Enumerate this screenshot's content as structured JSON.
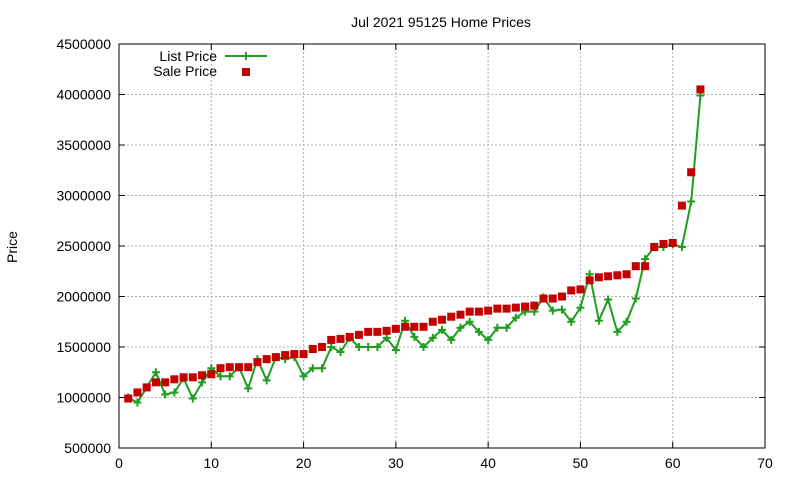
{
  "chart_data": {
    "type": "line",
    "title": "Jul 2021 95125 Home Prices",
    "xlabel": "",
    "ylabel": "Price",
    "xlim": [
      0,
      70
    ],
    "ylim": [
      500000,
      4500000
    ],
    "xticks": [
      0,
      10,
      20,
      30,
      40,
      50,
      60,
      70
    ],
    "yticks": [
      500000,
      1000000,
      1500000,
      2000000,
      2500000,
      3000000,
      3500000,
      4000000,
      4500000
    ],
    "grid": true,
    "legend_position": "top-left",
    "x": [
      1,
      2,
      3,
      4,
      5,
      6,
      7,
      8,
      9,
      10,
      11,
      12,
      13,
      14,
      15,
      16,
      17,
      18,
      19,
      20,
      21,
      22,
      23,
      24,
      25,
      26,
      27,
      28,
      29,
      30,
      31,
      32,
      33,
      34,
      35,
      36,
      37,
      38,
      39,
      40,
      41,
      42,
      43,
      44,
      45,
      46,
      47,
      48,
      49,
      50,
      51,
      52,
      53,
      54,
      55,
      56,
      57,
      58,
      59,
      60,
      61,
      62,
      63
    ],
    "series": [
      {
        "name": "List Price",
        "style": "linespoints",
        "color": "#1f9e1f",
        "values": [
          1000000,
          950000,
          1100000,
          1250000,
          1030000,
          1050000,
          1190000,
          990000,
          1150000,
          1290000,
          1210000,
          1210000,
          1300000,
          1090000,
          1380000,
          1170000,
          1400000,
          1380000,
          1400000,
          1210000,
          1290000,
          1290000,
          1500000,
          1450000,
          1590000,
          1500000,
          1500000,
          1500000,
          1590000,
          1470000,
          1760000,
          1600000,
          1500000,
          1590000,
          1670000,
          1570000,
          1690000,
          1750000,
          1650000,
          1570000,
          1690000,
          1690000,
          1790000,
          1850000,
          1850000,
          1990000,
          1860000,
          1870000,
          1750000,
          1890000,
          2220000,
          1760000,
          1970000,
          1650000,
          1750000,
          1980000,
          2370000,
          2490000,
          2490000,
          2520000,
          2490000,
          2940000,
          3990000
        ]
      },
      {
        "name": "Sale Price",
        "style": "points",
        "color": "#c40000",
        "values": [
          990000,
          1050000,
          1100000,
          1150000,
          1150000,
          1180000,
          1200000,
          1200000,
          1220000,
          1230000,
          1290000,
          1300000,
          1300000,
          1300000,
          1350000,
          1380000,
          1400000,
          1420000,
          1430000,
          1430000,
          1480000,
          1500000,
          1570000,
          1580000,
          1600000,
          1620000,
          1650000,
          1650000,
          1660000,
          1680000,
          1700000,
          1700000,
          1700000,
          1750000,
          1770000,
          1800000,
          1820000,
          1850000,
          1850000,
          1860000,
          1880000,
          1880000,
          1890000,
          1900000,
          1910000,
          1980000,
          1980000,
          2000000,
          2060000,
          2070000,
          2160000,
          2190000,
          2200000,
          2210000,
          2220000,
          2300000,
          2300000,
          2490000,
          2520000,
          2530000,
          2900000,
          3230000,
          4050000
        ]
      }
    ]
  }
}
